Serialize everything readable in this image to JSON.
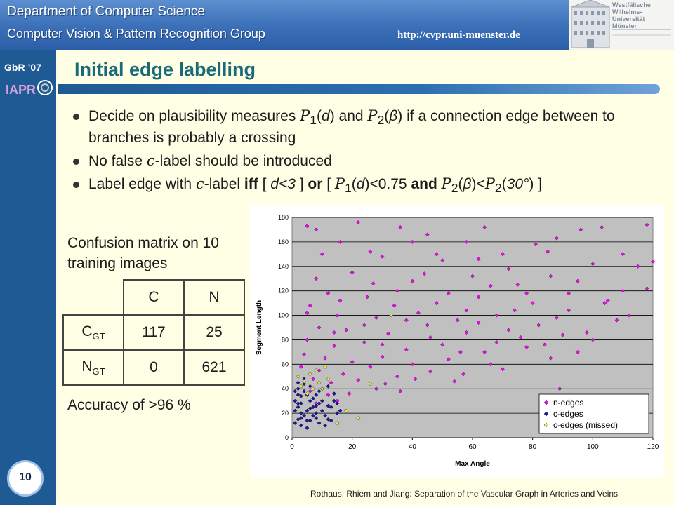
{
  "header": {
    "department": "Department of Computer Science",
    "group": "Computer Vision & Pattern Recognition Group",
    "url": "http://cvpr.uni-muenster.de",
    "logo_lines": [
      "Westfälische",
      "Wilhelms-Universität",
      "Münster"
    ]
  },
  "sidebar": {
    "conference": "GbR ’07",
    "page_number": "10"
  },
  "slide": {
    "title": "Initial edge labelling",
    "bullets": [
      {
        "parts": [
          "Decide on plausibility measures ",
          "P",
          "1",
          "(",
          "d",
          ") and ",
          "P",
          "2",
          "(",
          "β",
          ") if a connection edge between to branches is probably a crossing"
        ]
      },
      {
        "parts": [
          "No false ",
          "c",
          "-label should be introduced"
        ]
      },
      {
        "parts": [
          "Label edge with ",
          "c",
          "-label ",
          "iff",
          " [ ",
          "d<3",
          " ] ",
          "or",
          " [ ",
          "P",
          "1",
          "(",
          "d",
          ")<0.75 ",
          "and",
          " ",
          "P",
          "2",
          "(",
          "β",
          ")<",
          "P",
          "2",
          "(",
          "30°",
          ") ]"
        ]
      }
    ],
    "confusion_label": "Confusion matrix on 10 training images",
    "confusion_matrix": {
      "col_headers": [
        "C",
        "N"
      ],
      "rows": [
        {
          "label": "C",
          "sub": "GT",
          "values": [
            "117",
            "25"
          ]
        },
        {
          "label": "N",
          "sub": "GT",
          "values": [
            "0",
            "621"
          ]
        }
      ]
    },
    "accuracy": "Accuracy of >96 %",
    "citation": "Rothaus, Rhiem and Jiang: Separation of the Vascular Graph in Arteries and Veins"
  },
  "chart_data": {
    "type": "scatter",
    "xlabel": "Max Angle",
    "ylabel": "Segment Length",
    "xlim": [
      0,
      120
    ],
    "ylim": [
      0,
      180
    ],
    "xticks": [
      0,
      20,
      40,
      60,
      80,
      100,
      120
    ],
    "yticks": [
      0,
      20,
      40,
      60,
      80,
      100,
      120,
      140,
      160,
      180
    ],
    "grid": true,
    "legend_position": "bottom-right",
    "series": [
      {
        "name": "n-edges",
        "color": "#ff00ff",
        "points": [
          [
            5,
            173
          ],
          [
            8,
            170
          ],
          [
            22,
            176
          ],
          [
            36,
            172
          ],
          [
            45,
            166
          ],
          [
            64,
            172
          ],
          [
            96,
            170
          ],
          [
            103,
            172
          ],
          [
            118,
            174
          ],
          [
            81,
            158
          ],
          [
            85,
            152
          ],
          [
            58,
            160
          ],
          [
            88,
            163
          ],
          [
            10,
            150
          ],
          [
            30,
            148
          ],
          [
            50,
            145
          ],
          [
            70,
            150
          ],
          [
            100,
            142
          ],
          [
            115,
            140
          ],
          [
            120,
            144
          ],
          [
            8,
            130
          ],
          [
            20,
            135
          ],
          [
            40,
            128
          ],
          [
            60,
            132
          ],
          [
            75,
            125
          ],
          [
            95,
            128
          ],
          [
            110,
            120
          ],
          [
            12,
            118
          ],
          [
            25,
            115
          ],
          [
            35,
            120
          ],
          [
            48,
            110
          ],
          [
            62,
            115
          ],
          [
            80,
            110
          ],
          [
            105,
            112
          ],
          [
            6,
            108
          ],
          [
            15,
            100
          ],
          [
            28,
            98
          ],
          [
            42,
            102
          ],
          [
            55,
            96
          ],
          [
            68,
            100
          ],
          [
            88,
            98
          ],
          [
            112,
            100
          ],
          [
            9,
            90
          ],
          [
            18,
            88
          ],
          [
            32,
            85
          ],
          [
            45,
            92
          ],
          [
            58,
            86
          ],
          [
            72,
            88
          ],
          [
            90,
            84
          ],
          [
            100,
            80
          ],
          [
            5,
            80
          ],
          [
            14,
            75
          ],
          [
            24,
            78
          ],
          [
            38,
            72
          ],
          [
            50,
            76
          ],
          [
            64,
            70
          ],
          [
            78,
            74
          ],
          [
            95,
            70
          ],
          [
            4,
            68
          ],
          [
            11,
            65
          ],
          [
            20,
            62
          ],
          [
            30,
            66
          ],
          [
            40,
            60
          ],
          [
            52,
            64
          ],
          [
            66,
            60
          ],
          [
            86,
            65
          ],
          [
            3,
            58
          ],
          [
            9,
            55
          ],
          [
            17,
            52
          ],
          [
            26,
            58
          ],
          [
            35,
            50
          ],
          [
            46,
            54
          ],
          [
            57,
            52
          ],
          [
            70,
            56
          ],
          [
            7,
            48
          ],
          [
            13,
            45
          ],
          [
            22,
            47
          ],
          [
            31,
            44
          ],
          [
            41,
            48
          ],
          [
            54,
            46
          ],
          [
            89,
            40
          ],
          [
            6,
            38
          ],
          [
            12,
            35
          ],
          [
            19,
            36
          ],
          [
            28,
            40
          ],
          [
            36,
            38
          ],
          [
            8,
            28
          ],
          [
            15,
            30
          ],
          [
            5,
            102
          ],
          [
            16,
            112
          ],
          [
            27,
            126
          ],
          [
            44,
            134
          ],
          [
            52,
            118
          ],
          [
            66,
            124
          ],
          [
            74,
            104
          ],
          [
            82,
            92
          ],
          [
            92,
            104
          ],
          [
            108,
            96
          ],
          [
            118,
            122
          ],
          [
            34,
            108
          ],
          [
            58,
            104
          ],
          [
            46,
            82
          ],
          [
            62,
            94
          ],
          [
            76,
            82
          ],
          [
            84,
            76
          ],
          [
            24,
            92
          ],
          [
            38,
            96
          ],
          [
            14,
            86
          ],
          [
            30,
            76
          ],
          [
            56,
            70
          ],
          [
            68,
            78
          ],
          [
            98,
            86
          ],
          [
            104,
            110
          ],
          [
            72,
            138
          ],
          [
            86,
            132
          ],
          [
            110,
            150
          ],
          [
            40,
            160
          ],
          [
            26,
            152
          ],
          [
            16,
            160
          ],
          [
            62,
            146
          ],
          [
            48,
            150
          ],
          [
            92,
            118
          ],
          [
            78,
            118
          ]
        ]
      },
      {
        "name": "c-edges",
        "color": "#1a1a9a",
        "points": [
          [
            1,
            30
          ],
          [
            2,
            25
          ],
          [
            3,
            20
          ],
          [
            2,
            15
          ],
          [
            4,
            18
          ],
          [
            5,
            22
          ],
          [
            3,
            28
          ],
          [
            6,
            14
          ],
          [
            1,
            12
          ],
          [
            2,
            35
          ],
          [
            4,
            38
          ],
          [
            6,
            30
          ],
          [
            7,
            25
          ],
          [
            8,
            20
          ],
          [
            3,
            10
          ],
          [
            5,
            8
          ],
          [
            2,
            40
          ],
          [
            4,
            44
          ],
          [
            6,
            42
          ],
          [
            8,
            35
          ],
          [
            9,
            28
          ],
          [
            10,
            22
          ],
          [
            11,
            18
          ],
          [
            12,
            15
          ],
          [
            13,
            25
          ],
          [
            14,
            30
          ],
          [
            15,
            20
          ],
          [
            5,
            35
          ],
          [
            7,
            32
          ],
          [
            1,
            22
          ],
          [
            3,
            16
          ],
          [
            9,
            12
          ],
          [
            11,
            10
          ],
          [
            2,
            45
          ],
          [
            4,
            48
          ],
          [
            6,
            24
          ],
          [
            8,
            16
          ],
          [
            10,
            30
          ],
          [
            12,
            26
          ],
          [
            1,
            38
          ],
          [
            3,
            34
          ],
          [
            7,
            18
          ],
          [
            9,
            38
          ],
          [
            13,
            14
          ],
          [
            15,
            28
          ],
          [
            14,
            36
          ],
          [
            16,
            22
          ],
          [
            10,
            40
          ],
          [
            12,
            42
          ],
          [
            2,
            28
          ],
          [
            5,
            14
          ],
          [
            8,
            26
          ]
        ]
      },
      {
        "name": "c-edges (missed)",
        "color": "#e6e64d",
        "points": [
          [
            2,
            50
          ],
          [
            4,
            46
          ],
          [
            6,
            52
          ],
          [
            8,
            55
          ],
          [
            10,
            40
          ],
          [
            12,
            48
          ],
          [
            3,
            42
          ],
          [
            5,
            36
          ],
          [
            7,
            40
          ],
          [
            18,
            22
          ],
          [
            22,
            16
          ],
          [
            15,
            12
          ],
          [
            26,
            44
          ],
          [
            33,
            100
          ],
          [
            11,
            58
          ],
          [
            9,
            45
          ]
        ]
      }
    ]
  }
}
